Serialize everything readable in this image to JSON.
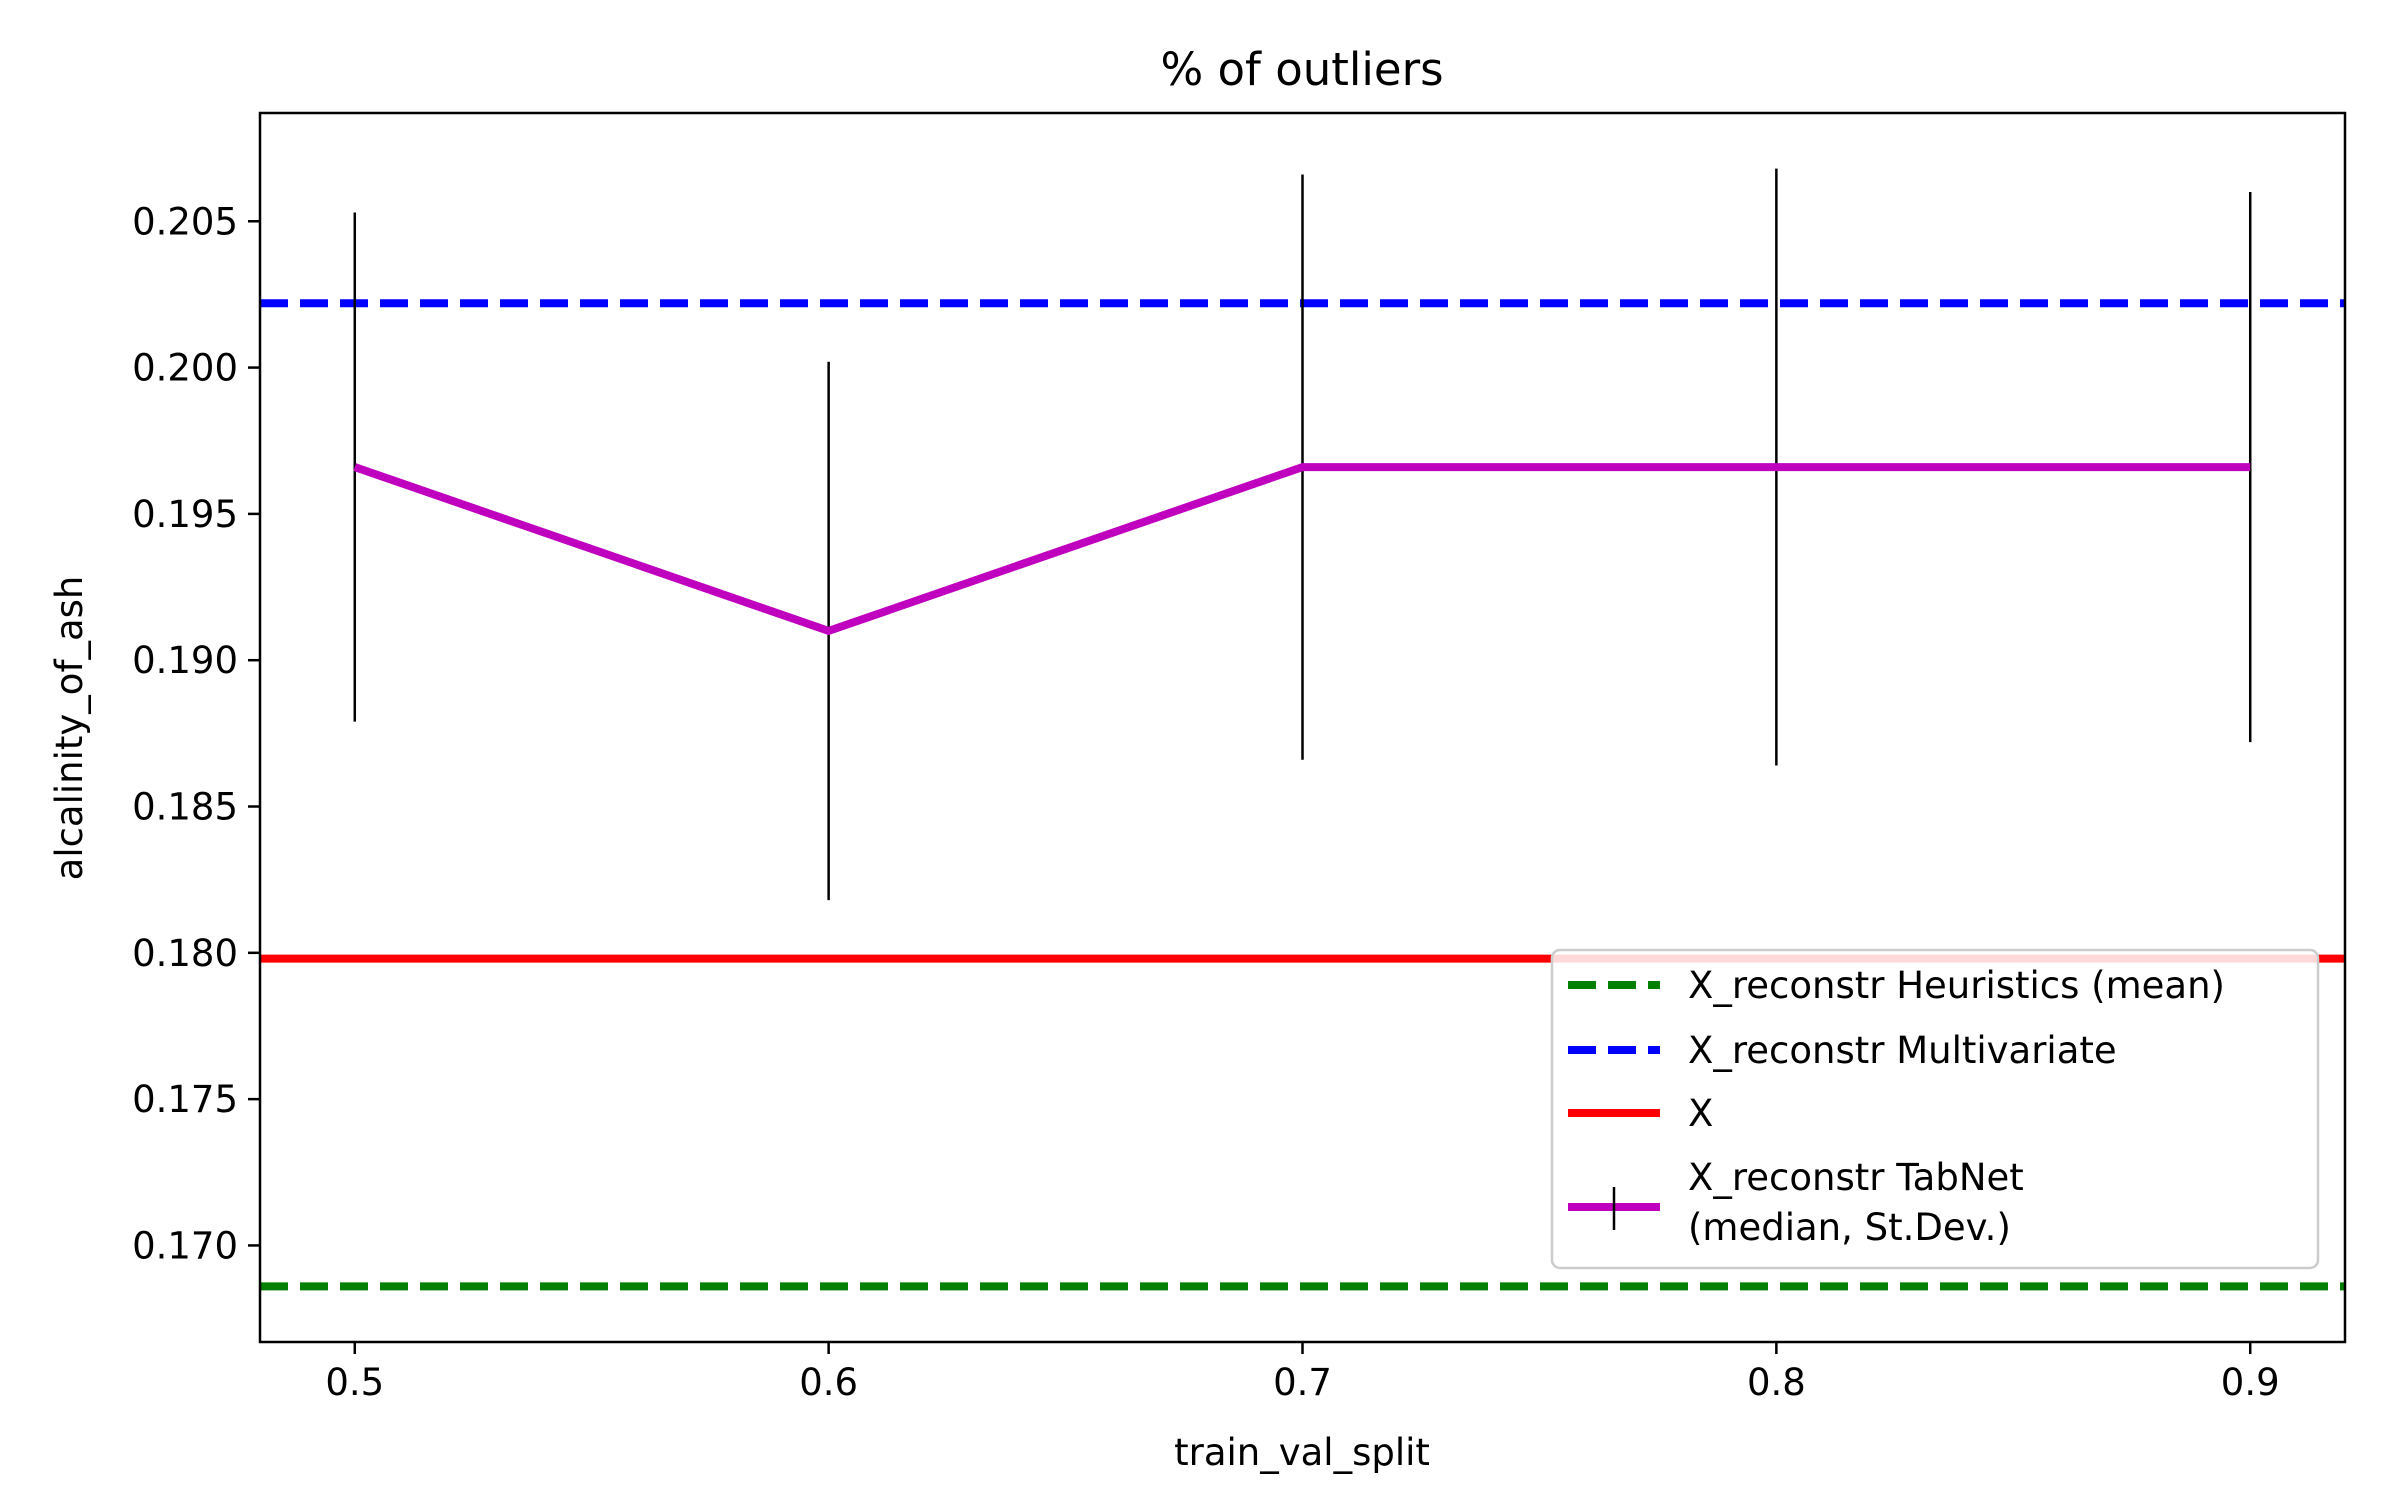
{
  "chart_data": {
    "type": "line",
    "title": "% of outliers",
    "xlabel": "train_val_split",
    "ylabel": "alcalinity_of_ash",
    "xlim": [
      0.48,
      0.92
    ],
    "ylim": [
      0.1667,
      0.2087
    ],
    "xticks": [
      0.5,
      0.6,
      0.7,
      0.8,
      0.9
    ],
    "xtick_labels": [
      "0.5",
      "0.6",
      "0.7",
      "0.8",
      "0.9"
    ],
    "yticks": [
      0.17,
      0.175,
      0.18,
      0.185,
      0.19,
      0.195,
      0.2,
      0.205
    ],
    "ytick_labels": [
      "0.170",
      "0.175",
      "0.180",
      "0.185",
      "0.190",
      "0.195",
      "0.200",
      "0.205"
    ],
    "grid": false,
    "legend_position": "lower-right",
    "hlines": [
      {
        "name": "X_reconstr Heuristics (mean)",
        "y": 0.1686,
        "color": "#008000",
        "style": "dashed"
      },
      {
        "name": "X_reconstr Multivariate",
        "y": 0.2022,
        "color": "#0000ff",
        "style": "dashed"
      },
      {
        "name": "X",
        "y": 0.1798,
        "color": "#ff0000",
        "style": "solid"
      }
    ],
    "series": [
      {
        "name": "X_reconstr TabNet (median, St.Dev.)",
        "legend_lines": [
          "X_reconstr TabNet",
          "(median, St.Dev.)"
        ],
        "color": "#bf00bf",
        "error_color": "#000000",
        "x": [
          0.5,
          0.6,
          0.7,
          0.8,
          0.9
        ],
        "y": [
          0.1966,
          0.191,
          0.1966,
          0.1966,
          0.1966
        ],
        "yerr_low": [
          0.1879,
          0.1818,
          0.1866,
          0.1864,
          0.1872
        ],
        "yerr_high": [
          0.2053,
          0.2002,
          0.2066,
          0.2068,
          0.206
        ]
      }
    ]
  }
}
